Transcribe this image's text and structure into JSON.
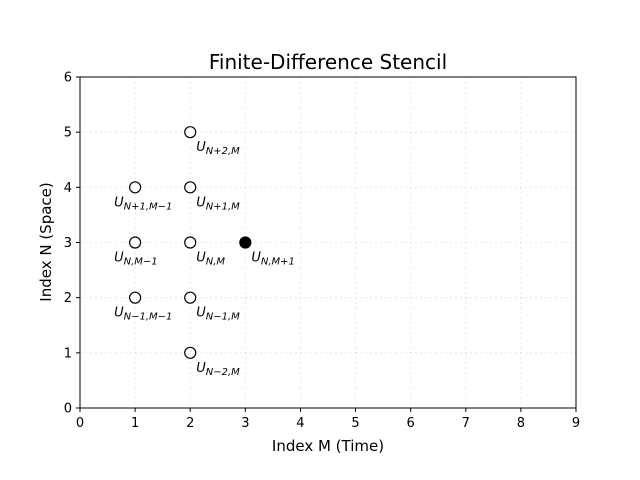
{
  "chart_data": {
    "type": "scatter",
    "title": "Finite-Difference Stencil",
    "xlabel": "Index M (Time)",
    "ylabel": "Index N (Space)",
    "xlim": [
      0,
      9
    ],
    "ylim": [
      0,
      6
    ],
    "xticks": [
      "0",
      "1",
      "2",
      "3",
      "4",
      "5",
      "6",
      "7",
      "8",
      "9"
    ],
    "yticks": [
      "0",
      "1",
      "2",
      "3",
      "4",
      "5",
      "6"
    ],
    "grid": true,
    "points": [
      {
        "x": 2,
        "y": 5,
        "filled": false,
        "label": "U",
        "sub": "N+2,M"
      },
      {
        "x": 1,
        "y": 4,
        "filled": false,
        "label": "U",
        "sub": "N+1,M−1"
      },
      {
        "x": 2,
        "y": 4,
        "filled": false,
        "label": "U",
        "sub": "N+1,M"
      },
      {
        "x": 1,
        "y": 3,
        "filled": false,
        "label": "U",
        "sub": "N,M−1"
      },
      {
        "x": 2,
        "y": 3,
        "filled": false,
        "label": "U",
        "sub": "N,M"
      },
      {
        "x": 3,
        "y": 3,
        "filled": true,
        "label": "U",
        "sub": "N,M+1"
      },
      {
        "x": 1,
        "y": 2,
        "filled": false,
        "label": "U",
        "sub": "N−1,M−1"
      },
      {
        "x": 2,
        "y": 2,
        "filled": false,
        "label": "U",
        "sub": "N−1,M"
      },
      {
        "x": 2,
        "y": 1,
        "filled": false,
        "label": "U",
        "sub": "N−2,M"
      }
    ]
  }
}
